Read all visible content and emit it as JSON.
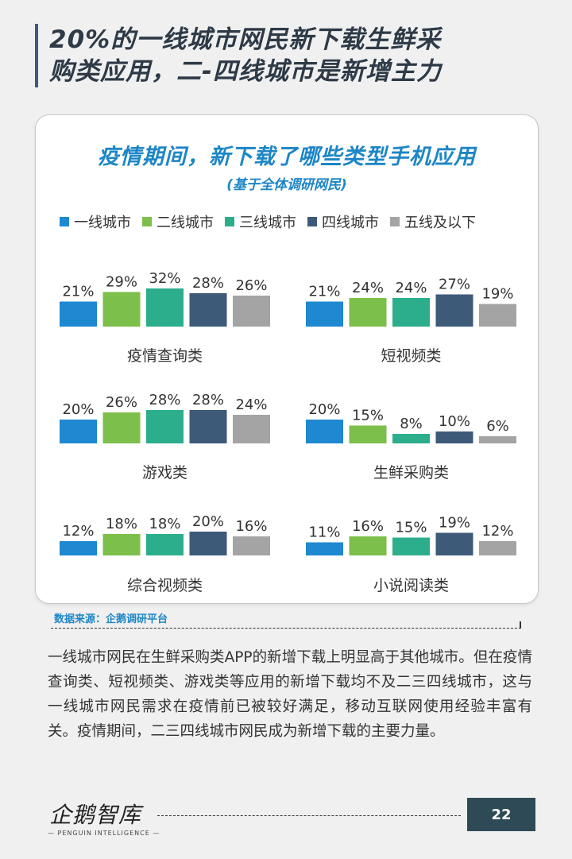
{
  "header": {
    "title_line1": "20%的一线城市网民新下载生鲜采",
    "title_line2": "购类应用，二-四线城市是新增主力"
  },
  "colors": {
    "一线城市": "#1e88d0",
    "二线城市": "#7cbf4a",
    "三线城市": "#2cae8c",
    "四线城市": "#3d5a78",
    "五线及以下": "#a4a4a4",
    "title_blue": "#1d86c6"
  },
  "chart_data": {
    "type": "bar",
    "title": "疫情期间，新下载了哪些类型手机应用",
    "subtitle": "(基于全体调研网民)",
    "legend": [
      "一线城市",
      "二线城市",
      "三线城市",
      "四线城市",
      "五线及以下"
    ],
    "legend_placement": "top",
    "ylim": [
      0,
      100
    ],
    "value_format": "percent",
    "grid": false,
    "panels": [
      {
        "category": "疫情查询类",
        "values": [
          21,
          29,
          32,
          28,
          26
        ]
      },
      {
        "category": "短视频类",
        "values": [
          21,
          24,
          24,
          27,
          19
        ]
      },
      {
        "category": "游戏类",
        "values": [
          20,
          26,
          28,
          28,
          24
        ]
      },
      {
        "category": "生鲜采购类",
        "values": [
          20,
          15,
          8,
          10,
          6
        ]
      },
      {
        "category": "综合视频类",
        "values": [
          12,
          18,
          18,
          20,
          16
        ]
      },
      {
        "category": "小说阅读类",
        "values": [
          11,
          16,
          15,
          19,
          12
        ]
      }
    ]
  },
  "source": "数据来源：企鹅调研平台",
  "body_text": "一线城市网民在生鲜采购类APP的新增下载上明显高于其他城市。但在疫情查询类、短视频类、游戏类等应用的新增下载均不及二三四线城市，这与一线城市网民需求在疫情前已被较好满足，移动互联网使用经验丰富有关。疫情期间，二三四线城市网民成为新增下载的主要力量。",
  "footer": {
    "logo_text": "企鹅智库",
    "logo_subtitle": "— PENGUIN INTELLIGENCE —",
    "page_number": "22"
  }
}
